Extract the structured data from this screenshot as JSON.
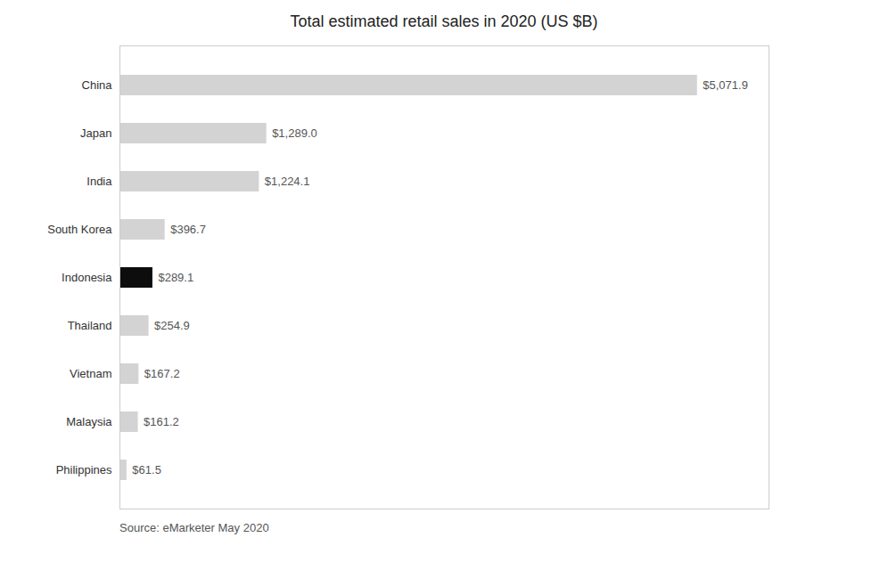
{
  "chart_data": {
    "type": "bar",
    "orientation": "horizontal",
    "title": "Total estimated retail sales in 2020 (US $B)",
    "categories": [
      "China",
      "Japan",
      "India",
      "South Korea",
      "Indonesia",
      "Thailand",
      "Vietnam",
      "Malaysia",
      "Philippines"
    ],
    "values": [
      5071.9,
      1289.0,
      1224.1,
      396.7,
      289.1,
      254.9,
      167.2,
      161.2,
      61.5
    ],
    "value_labels": [
      "$5,071.9",
      "$1,289.0",
      "$1,224.1",
      "$396.7",
      "$289.1",
      "$254.9",
      "$167.2",
      "$161.2",
      "$61.5"
    ],
    "colors": [
      "#d3d3d3",
      "#d3d3d3",
      "#d3d3d3",
      "#d3d3d3",
      "#0d0d0d",
      "#d3d3d3",
      "#d3d3d3",
      "#d3d3d3",
      "#d3d3d3"
    ],
    "xlim": [
      0,
      5700
    ],
    "xticks": [],
    "data_labels": true,
    "tick_labels": "y",
    "grid": false,
    "annotations": [
      "Source: eMarketer May 2020"
    ]
  }
}
